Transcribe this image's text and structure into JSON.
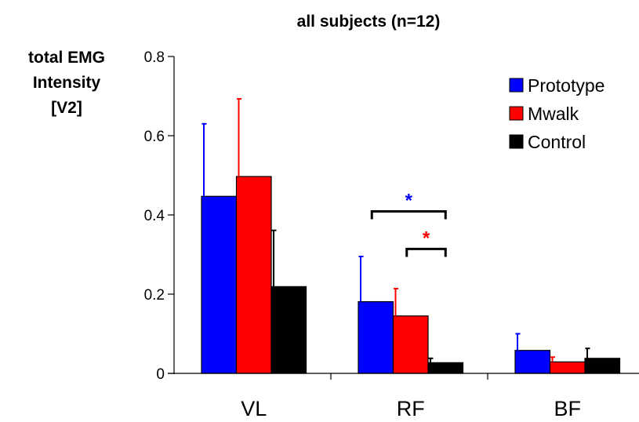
{
  "chart_data": {
    "type": "bar",
    "title": "all subjects (n=12)",
    "ylabel_lines": [
      "total EMG",
      "Intensity",
      "[V2]"
    ],
    "xlabel": "",
    "categories": [
      "VL",
      "RF",
      "BF"
    ],
    "ylim": [
      0,
      0.8
    ],
    "yticks": [
      0,
      0.2,
      0.4,
      0.6,
      0.8
    ],
    "ytick_labels": [
      "0",
      "0.2",
      "0.4",
      "0.6",
      "0.8"
    ],
    "series": [
      {
        "name": "Prototype",
        "color": "#0000ff",
        "values": [
          0.447,
          0.181,
          0.058
        ],
        "errors": [
          0.183,
          0.114,
          0.042
        ]
      },
      {
        "name": "Mwalk",
        "color": "#ff0000",
        "values": [
          0.497,
          0.145,
          0.029
        ],
        "errors": [
          0.196,
          0.069,
          0.012
        ]
      },
      {
        "name": "Control",
        "color": "#000000",
        "values": [
          0.219,
          0.027,
          0.038
        ],
        "errors": [
          0.142,
          0.011,
          0.025
        ]
      }
    ],
    "significance": [
      {
        "category": "RF",
        "from_series": "Prototype",
        "to_series": "Control",
        "label": "*",
        "color": "#0000ff"
      },
      {
        "category": "RF",
        "from_series": "Mwalk",
        "to_series": "Control",
        "label": "*",
        "color": "#ff0000"
      }
    ],
    "legend_position": "top-right",
    "grid": false
  }
}
